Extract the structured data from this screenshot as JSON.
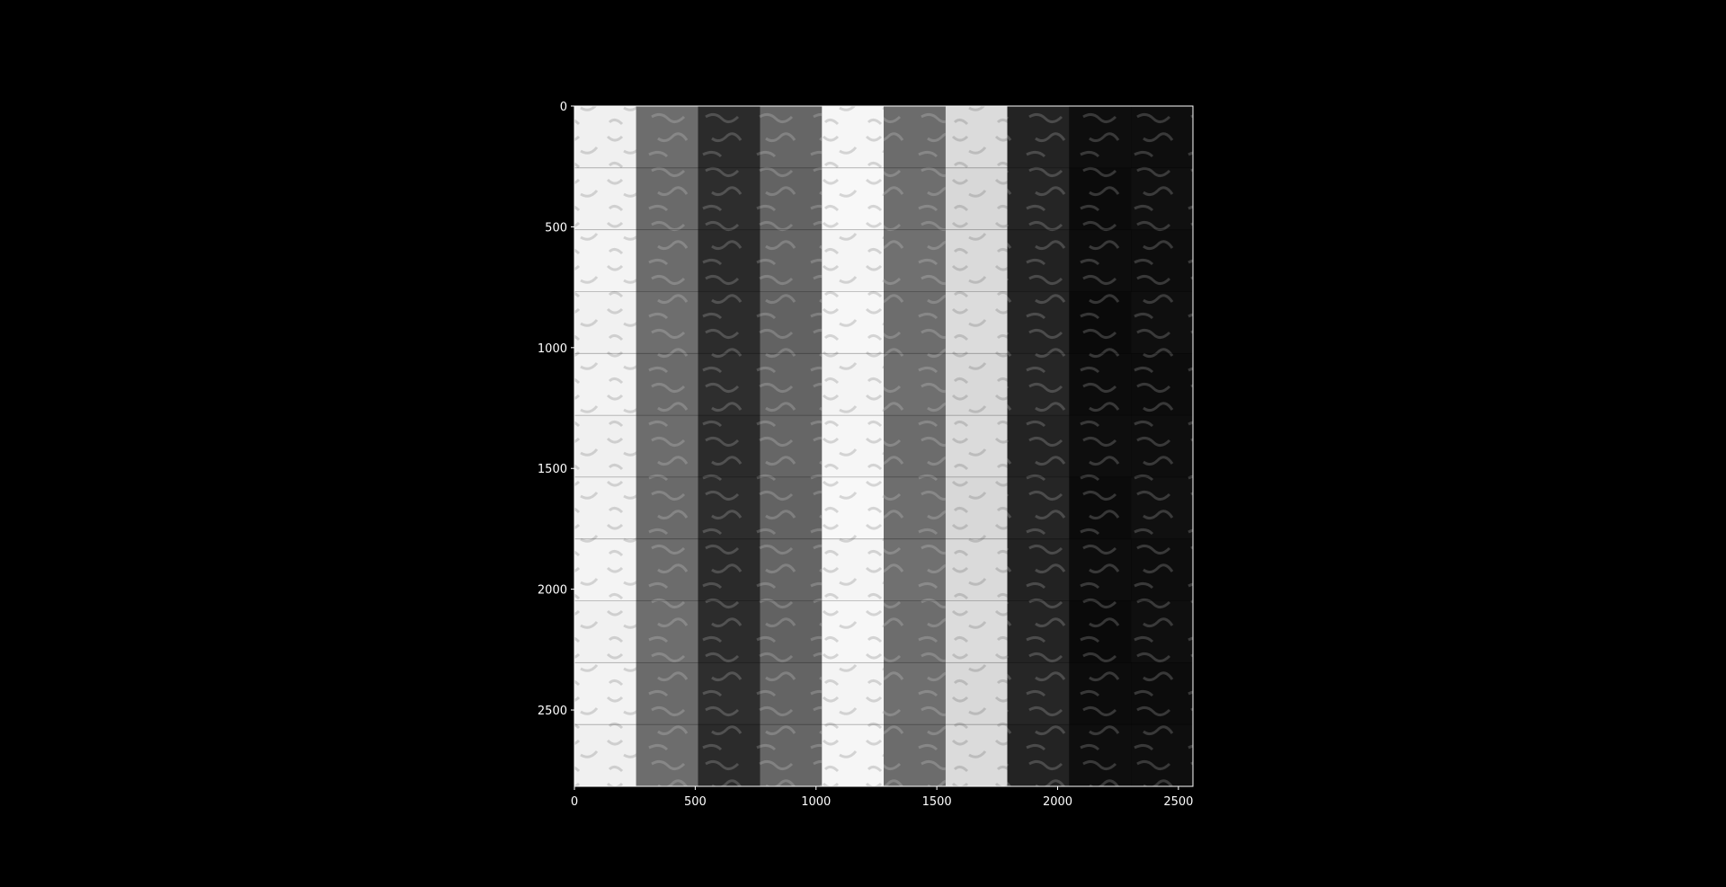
{
  "figure": {
    "background": "#000000",
    "text_color": "#ffffff"
  },
  "chart_data": {
    "type": "heatmap",
    "description_kind": "image-montage",
    "colormap": "gray",
    "xlim": [
      0,
      2560
    ],
    "ylim": [
      2816,
      0
    ],
    "y_inverted": true,
    "grid": false,
    "legend": "none",
    "xticks": [
      0,
      500,
      1000,
      1500,
      2000,
      2500
    ],
    "yticks": [
      0,
      500,
      1000,
      1500,
      2000,
      2500
    ],
    "xtick_labels": [
      "0",
      "500",
      "1000",
      "1500",
      "2000",
      "2500"
    ],
    "ytick_labels": [
      "0",
      "500",
      "1000",
      "1500",
      "2000",
      "2500"
    ],
    "tile_size": 256,
    "n_columns": 10,
    "n_rows": 11,
    "column_gray_levels": [
      242,
      108,
      44,
      100,
      246,
      110,
      218,
      36,
      12,
      14
    ]
  }
}
